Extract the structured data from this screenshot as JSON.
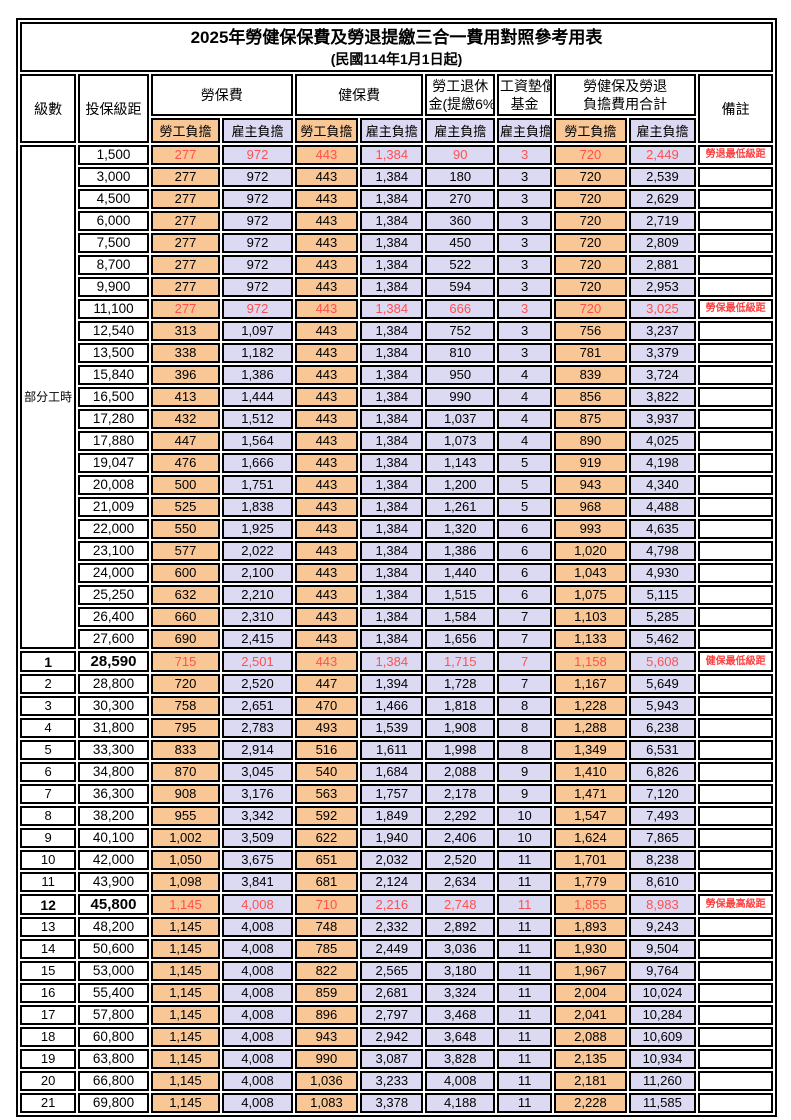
{
  "title": "2025年勞健保保費及勞退提繳三合一費用對照參考用表",
  "subtitle": "(民國114年1月1日起)",
  "header": {
    "level": "級數",
    "bracket": "投保級距",
    "labor_ins": "勞保費",
    "health_ins": "健保費",
    "pension_line1": "勞工退休",
    "pension_line2": "金(提繳6%)",
    "wage_fund_line1": "工資墊償",
    "wage_fund_line2": "基金",
    "total_line1": "勞健保及勞退",
    "total_line2": "負擔費用合計",
    "remark": "備註",
    "employee": "勞工負擔",
    "employer": "雇主負擔"
  },
  "part_time": {
    "label": "部分工時",
    "span": 23
  },
  "colors": {
    "employee_bg": "#F9C795",
    "employer_bg": "#DCD9F2",
    "highlight_text": "#FF5050",
    "remark_text": "#FF4040",
    "border": "#000000"
  },
  "rows": [
    {
      "level": "",
      "bracket": "1,500",
      "labor_emp": "277",
      "labor_er": "972",
      "health_emp": "443",
      "health_er": "1,384",
      "pension": "90",
      "fund": "3",
      "total_emp": "720",
      "total_er": "2,449",
      "remark": "勞退最低級距",
      "highlight": true
    },
    {
      "level": "",
      "bracket": "3,000",
      "labor_emp": "277",
      "labor_er": "972",
      "health_emp": "443",
      "health_er": "1,384",
      "pension": "180",
      "fund": "3",
      "total_emp": "720",
      "total_er": "2,539",
      "remark": ""
    },
    {
      "level": "",
      "bracket": "4,500",
      "labor_emp": "277",
      "labor_er": "972",
      "health_emp": "443",
      "health_er": "1,384",
      "pension": "270",
      "fund": "3",
      "total_emp": "720",
      "total_er": "2,629",
      "remark": ""
    },
    {
      "level": "",
      "bracket": "6,000",
      "labor_emp": "277",
      "labor_er": "972",
      "health_emp": "443",
      "health_er": "1,384",
      "pension": "360",
      "fund": "3",
      "total_emp": "720",
      "total_er": "2,719",
      "remark": ""
    },
    {
      "level": "",
      "bracket": "7,500",
      "labor_emp": "277",
      "labor_er": "972",
      "health_emp": "443",
      "health_er": "1,384",
      "pension": "450",
      "fund": "3",
      "total_emp": "720",
      "total_er": "2,809",
      "remark": ""
    },
    {
      "level": "",
      "bracket": "8,700",
      "labor_emp": "277",
      "labor_er": "972",
      "health_emp": "443",
      "health_er": "1,384",
      "pension": "522",
      "fund": "3",
      "total_emp": "720",
      "total_er": "2,881",
      "remark": ""
    },
    {
      "level": "",
      "bracket": "9,900",
      "labor_emp": "277",
      "labor_er": "972",
      "health_emp": "443",
      "health_er": "1,384",
      "pension": "594",
      "fund": "3",
      "total_emp": "720",
      "total_er": "2,953",
      "remark": ""
    },
    {
      "level": "",
      "bracket": "11,100",
      "labor_emp": "277",
      "labor_er": "972",
      "health_emp": "443",
      "health_er": "1,384",
      "pension": "666",
      "fund": "3",
      "total_emp": "720",
      "total_er": "3,025",
      "remark": "勞保最低級距",
      "highlight": true
    },
    {
      "level": "",
      "bracket": "12,540",
      "labor_emp": "313",
      "labor_er": "1,097",
      "health_emp": "443",
      "health_er": "1,384",
      "pension": "752",
      "fund": "3",
      "total_emp": "756",
      "total_er": "3,237",
      "remark": ""
    },
    {
      "level": "",
      "bracket": "13,500",
      "labor_emp": "338",
      "labor_er": "1,182",
      "health_emp": "443",
      "health_er": "1,384",
      "pension": "810",
      "fund": "3",
      "total_emp": "781",
      "total_er": "3,379",
      "remark": ""
    },
    {
      "level": "",
      "bracket": "15,840",
      "labor_emp": "396",
      "labor_er": "1,386",
      "health_emp": "443",
      "health_er": "1,384",
      "pension": "950",
      "fund": "4",
      "total_emp": "839",
      "total_er": "3,724",
      "remark": ""
    },
    {
      "level": "",
      "bracket": "16,500",
      "labor_emp": "413",
      "labor_er": "1,444",
      "health_emp": "443",
      "health_er": "1,384",
      "pension": "990",
      "fund": "4",
      "total_emp": "856",
      "total_er": "3,822",
      "remark": ""
    },
    {
      "level": "",
      "bracket": "17,280",
      "labor_emp": "432",
      "labor_er": "1,512",
      "health_emp": "443",
      "health_er": "1,384",
      "pension": "1,037",
      "fund": "4",
      "total_emp": "875",
      "total_er": "3,937",
      "remark": ""
    },
    {
      "level": "",
      "bracket": "17,880",
      "labor_emp": "447",
      "labor_er": "1,564",
      "health_emp": "443",
      "health_er": "1,384",
      "pension": "1,073",
      "fund": "4",
      "total_emp": "890",
      "total_er": "4,025",
      "remark": ""
    },
    {
      "level": "",
      "bracket": "19,047",
      "labor_emp": "476",
      "labor_er": "1,666",
      "health_emp": "443",
      "health_er": "1,384",
      "pension": "1,143",
      "fund": "5",
      "total_emp": "919",
      "total_er": "4,198",
      "remark": ""
    },
    {
      "level": "",
      "bracket": "20,008",
      "labor_emp": "500",
      "labor_er": "1,751",
      "health_emp": "443",
      "health_er": "1,384",
      "pension": "1,200",
      "fund": "5",
      "total_emp": "943",
      "total_er": "4,340",
      "remark": ""
    },
    {
      "level": "",
      "bracket": "21,009",
      "labor_emp": "525",
      "labor_er": "1,838",
      "health_emp": "443",
      "health_er": "1,384",
      "pension": "1,261",
      "fund": "5",
      "total_emp": "968",
      "total_er": "4,488",
      "remark": ""
    },
    {
      "level": "",
      "bracket": "22,000",
      "labor_emp": "550",
      "labor_er": "1,925",
      "health_emp": "443",
      "health_er": "1,384",
      "pension": "1,320",
      "fund": "6",
      "total_emp": "993",
      "total_er": "4,635",
      "remark": ""
    },
    {
      "level": "",
      "bracket": "23,100",
      "labor_emp": "577",
      "labor_er": "2,022",
      "health_emp": "443",
      "health_er": "1,384",
      "pension": "1,386",
      "fund": "6",
      "total_emp": "1,020",
      "total_er": "4,798",
      "remark": ""
    },
    {
      "level": "",
      "bracket": "24,000",
      "labor_emp": "600",
      "labor_er": "2,100",
      "health_emp": "443",
      "health_er": "1,384",
      "pension": "1,440",
      "fund": "6",
      "total_emp": "1,043",
      "total_er": "4,930",
      "remark": ""
    },
    {
      "level": "",
      "bracket": "25,250",
      "labor_emp": "632",
      "labor_er": "2,210",
      "health_emp": "443",
      "health_er": "1,384",
      "pension": "1,515",
      "fund": "6",
      "total_emp": "1,075",
      "total_er": "5,115",
      "remark": ""
    },
    {
      "level": "",
      "bracket": "26,400",
      "labor_emp": "660",
      "labor_er": "2,310",
      "health_emp": "443",
      "health_er": "1,384",
      "pension": "1,584",
      "fund": "7",
      "total_emp": "1,103",
      "total_er": "5,285",
      "remark": ""
    },
    {
      "level": "",
      "bracket": "27,600",
      "labor_emp": "690",
      "labor_er": "2,415",
      "health_emp": "443",
      "health_er": "1,384",
      "pension": "1,656",
      "fund": "7",
      "total_emp": "1,133",
      "total_er": "5,462",
      "remark": ""
    },
    {
      "level": "1",
      "bracket": "28,590",
      "labor_emp": "715",
      "labor_er": "2,501",
      "health_emp": "443",
      "health_er": "1,384",
      "pension": "1,715",
      "fund": "7",
      "total_emp": "1,158",
      "total_er": "5,608",
      "remark": "健保最低級距",
      "highlight": true,
      "emphasis": true
    },
    {
      "level": "2",
      "bracket": "28,800",
      "labor_emp": "720",
      "labor_er": "2,520",
      "health_emp": "447",
      "health_er": "1,394",
      "pension": "1,728",
      "fund": "7",
      "total_emp": "1,167",
      "total_er": "5,649",
      "remark": ""
    },
    {
      "level": "3",
      "bracket": "30,300",
      "labor_emp": "758",
      "labor_er": "2,651",
      "health_emp": "470",
      "health_er": "1,466",
      "pension": "1,818",
      "fund": "8",
      "total_emp": "1,228",
      "total_er": "5,943",
      "remark": ""
    },
    {
      "level": "4",
      "bracket": "31,800",
      "labor_emp": "795",
      "labor_er": "2,783",
      "health_emp": "493",
      "health_er": "1,539",
      "pension": "1,908",
      "fund": "8",
      "total_emp": "1,288",
      "total_er": "6,238",
      "remark": ""
    },
    {
      "level": "5",
      "bracket": "33,300",
      "labor_emp": "833",
      "labor_er": "2,914",
      "health_emp": "516",
      "health_er": "1,611",
      "pension": "1,998",
      "fund": "8",
      "total_emp": "1,349",
      "total_er": "6,531",
      "remark": ""
    },
    {
      "level": "6",
      "bracket": "34,800",
      "labor_emp": "870",
      "labor_er": "3,045",
      "health_emp": "540",
      "health_er": "1,684",
      "pension": "2,088",
      "fund": "9",
      "total_emp": "1,410",
      "total_er": "6,826",
      "remark": ""
    },
    {
      "level": "7",
      "bracket": "36,300",
      "labor_emp": "908",
      "labor_er": "3,176",
      "health_emp": "563",
      "health_er": "1,757",
      "pension": "2,178",
      "fund": "9",
      "total_emp": "1,471",
      "total_er": "7,120",
      "remark": ""
    },
    {
      "level": "8",
      "bracket": "38,200",
      "labor_emp": "955",
      "labor_er": "3,342",
      "health_emp": "592",
      "health_er": "1,849",
      "pension": "2,292",
      "fund": "10",
      "total_emp": "1,547",
      "total_er": "7,493",
      "remark": ""
    },
    {
      "level": "9",
      "bracket": "40,100",
      "labor_emp": "1,002",
      "labor_er": "3,509",
      "health_emp": "622",
      "health_er": "1,940",
      "pension": "2,406",
      "fund": "10",
      "total_emp": "1,624",
      "total_er": "7,865",
      "remark": ""
    },
    {
      "level": "10",
      "bracket": "42,000",
      "labor_emp": "1,050",
      "labor_er": "3,675",
      "health_emp": "651",
      "health_er": "2,032",
      "pension": "2,520",
      "fund": "11",
      "total_emp": "1,701",
      "total_er": "8,238",
      "remark": ""
    },
    {
      "level": "11",
      "bracket": "43,900",
      "labor_emp": "1,098",
      "labor_er": "3,841",
      "health_emp": "681",
      "health_er": "2,124",
      "pension": "2,634",
      "fund": "11",
      "total_emp": "1,779",
      "total_er": "8,610",
      "remark": ""
    },
    {
      "level": "12",
      "bracket": "45,800",
      "labor_emp": "1,145",
      "labor_er": "4,008",
      "health_emp": "710",
      "health_er": "2,216",
      "pension": "2,748",
      "fund": "11",
      "total_emp": "1,855",
      "total_er": "8,983",
      "remark": "勞保最高級距",
      "highlight": true,
      "emphasis": true
    },
    {
      "level": "13",
      "bracket": "48,200",
      "labor_emp": "1,145",
      "labor_er": "4,008",
      "health_emp": "748",
      "health_er": "2,332",
      "pension": "2,892",
      "fund": "11",
      "total_emp": "1,893",
      "total_er": "9,243",
      "remark": ""
    },
    {
      "level": "14",
      "bracket": "50,600",
      "labor_emp": "1,145",
      "labor_er": "4,008",
      "health_emp": "785",
      "health_er": "2,449",
      "pension": "3,036",
      "fund": "11",
      "total_emp": "1,930",
      "total_er": "9,504",
      "remark": ""
    },
    {
      "level": "15",
      "bracket": "53,000",
      "labor_emp": "1,145",
      "labor_er": "4,008",
      "health_emp": "822",
      "health_er": "2,565",
      "pension": "3,180",
      "fund": "11",
      "total_emp": "1,967",
      "total_er": "9,764",
      "remark": ""
    },
    {
      "level": "16",
      "bracket": "55,400",
      "labor_emp": "1,145",
      "labor_er": "4,008",
      "health_emp": "859",
      "health_er": "2,681",
      "pension": "3,324",
      "fund": "11",
      "total_emp": "2,004",
      "total_er": "10,024",
      "remark": ""
    },
    {
      "level": "17",
      "bracket": "57,800",
      "labor_emp": "1,145",
      "labor_er": "4,008",
      "health_emp": "896",
      "health_er": "2,797",
      "pension": "3,468",
      "fund": "11",
      "total_emp": "2,041",
      "total_er": "10,284",
      "remark": ""
    },
    {
      "level": "18",
      "bracket": "60,800",
      "labor_emp": "1,145",
      "labor_er": "4,008",
      "health_emp": "943",
      "health_er": "2,942",
      "pension": "3,648",
      "fund": "11",
      "total_emp": "2,088",
      "total_er": "10,609",
      "remark": ""
    },
    {
      "level": "19",
      "bracket": "63,800",
      "labor_emp": "1,145",
      "labor_er": "4,008",
      "health_emp": "990",
      "health_er": "3,087",
      "pension": "3,828",
      "fund": "11",
      "total_emp": "2,135",
      "total_er": "10,934",
      "remark": ""
    },
    {
      "level": "20",
      "bracket": "66,800",
      "labor_emp": "1,145",
      "labor_er": "4,008",
      "health_emp": "1,036",
      "health_er": "3,233",
      "pension": "4,008",
      "fund": "11",
      "total_emp": "2,181",
      "total_er": "11,260",
      "remark": ""
    },
    {
      "level": "21",
      "bracket": "69,800",
      "labor_emp": "1,145",
      "labor_er": "4,008",
      "health_emp": "1,083",
      "health_er": "3,378",
      "pension": "4,188",
      "fund": "11",
      "total_emp": "2,228",
      "total_er": "11,585",
      "remark": ""
    }
  ]
}
